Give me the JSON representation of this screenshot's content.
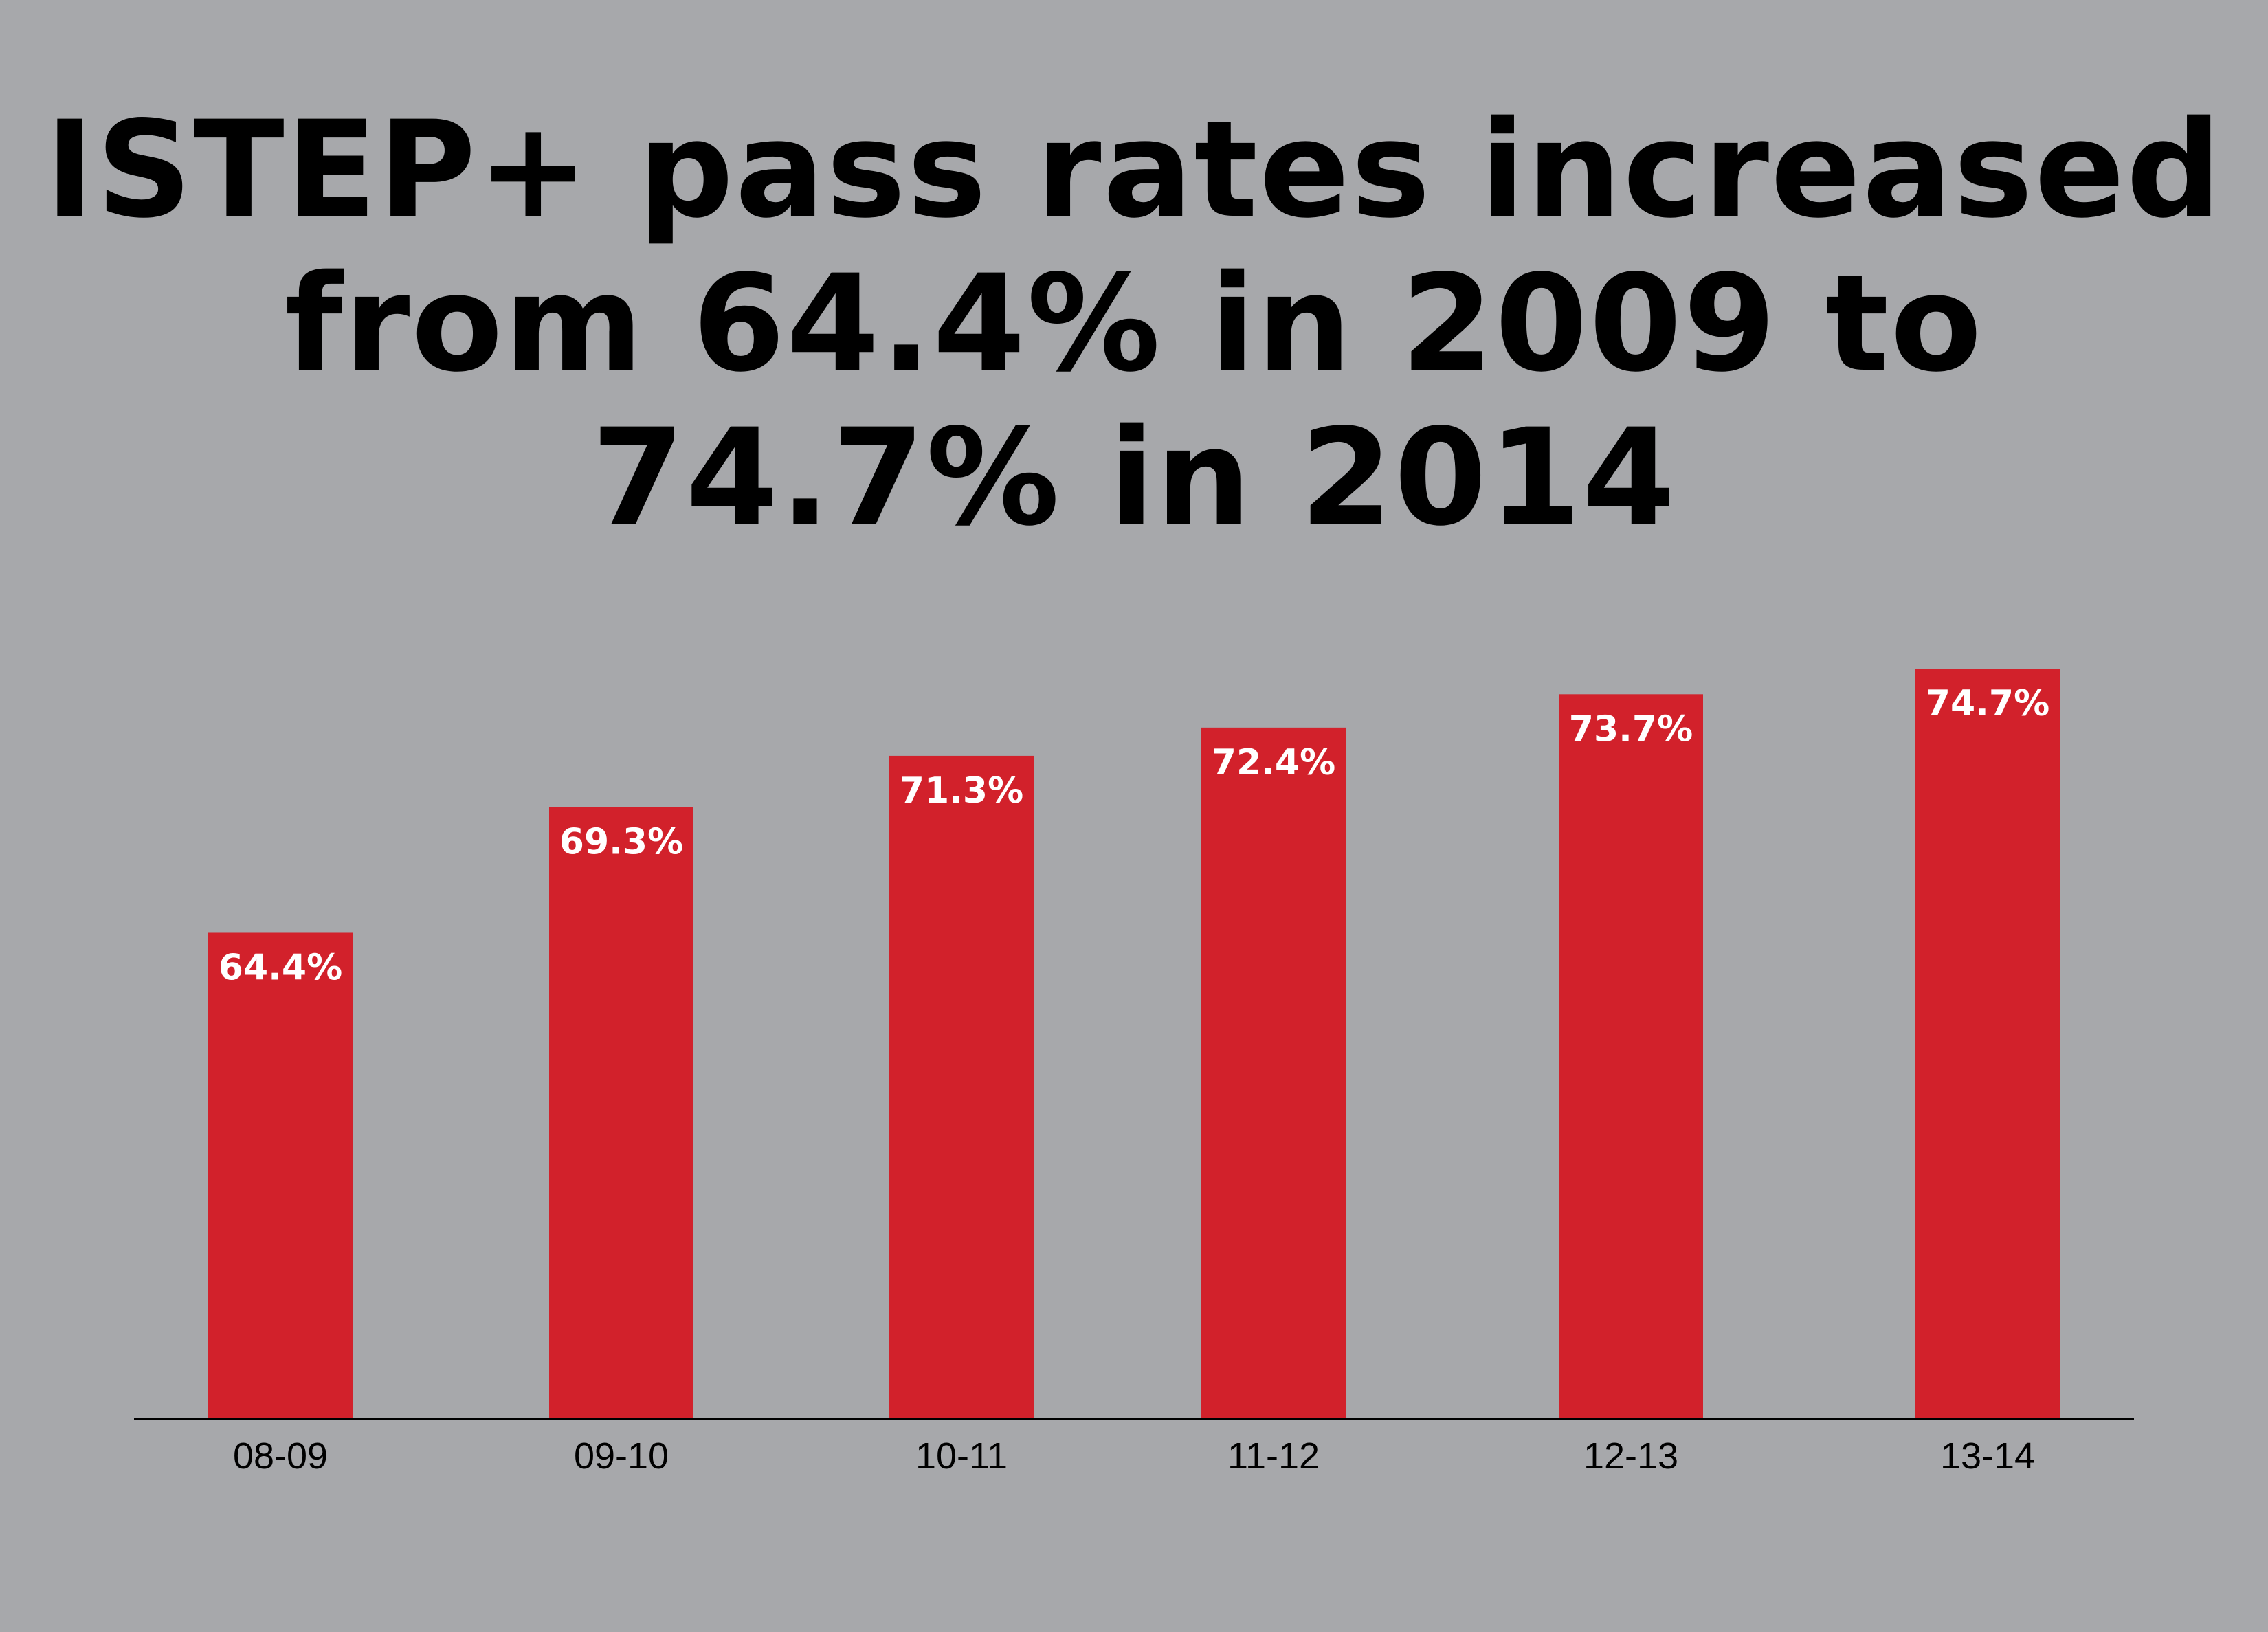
{
  "title_lines": [
    "ISTEP+ pass rates increased",
    "from 64.4% in 2009 to",
    "74.7% in 2014"
  ],
  "colors": {
    "background": "#a7a8ab",
    "bar": "#d2212b",
    "bar_label": "#ffffff",
    "axis": "#000000",
    "tick_label": "#000000",
    "title": "#000000"
  },
  "chart_data": {
    "type": "bar",
    "title": "ISTEP+ pass rates increased from 64.4% in 2009 to 74.7% in 2014",
    "xlabel": "",
    "ylabel": "",
    "categories": [
      "08-09",
      "09-10",
      "10-11",
      "11-12",
      "12-13",
      "13-14"
    ],
    "values": [
      64.4,
      69.3,
      71.3,
      72.4,
      73.7,
      74.7
    ],
    "value_labels": [
      "64.4%",
      "69.3%",
      "71.3%",
      "72.4%",
      "73.7%",
      "74.7%"
    ],
    "ylim": [
      45.5,
      74.7
    ],
    "grid": false,
    "legend": "none",
    "data_label_position": "inside-top"
  }
}
